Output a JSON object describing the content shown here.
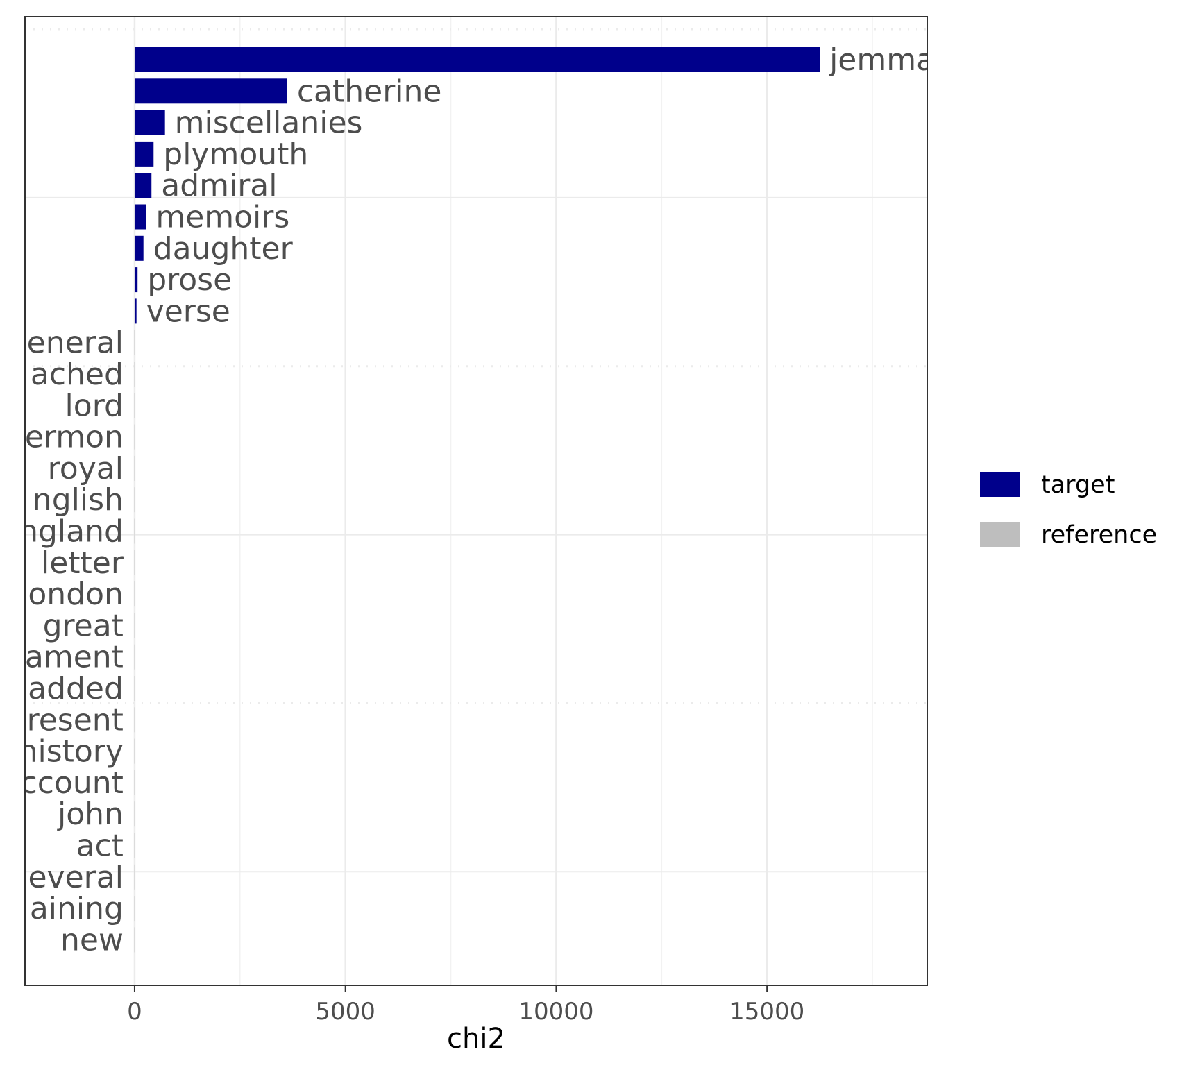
{
  "chart_data": {
    "type": "bar",
    "orientation": "horizontal",
    "xlabel": "chi2",
    "ylabel": "",
    "xlim": [
      -2600,
      18800
    ],
    "x_ticks": [
      0,
      5000,
      10000,
      15000
    ],
    "x_tick_labels": [
      "0",
      "5000",
      "10000",
      "15000"
    ],
    "grid": true,
    "legend": {
      "position": "right",
      "entries": [
        {
          "label": "target",
          "color": "#00008B"
        },
        {
          "label": "reference",
          "color": "#BEBEBE"
        }
      ]
    },
    "bars": [
      {
        "term": "jemma",
        "value": 16250,
        "group": "target",
        "label_text": "jemma"
      },
      {
        "term": "catherine",
        "value": 3620,
        "group": "target",
        "label_text": "catherine"
      },
      {
        "term": "miscellanies",
        "value": 720,
        "group": "target",
        "label_text": "miscellanies"
      },
      {
        "term": "plymouth",
        "value": 450,
        "group": "target",
        "label_text": "plymouth"
      },
      {
        "term": "admiral",
        "value": 400,
        "group": "target",
        "label_text": "admiral"
      },
      {
        "term": "memoirs",
        "value": 270,
        "group": "target",
        "label_text": "memoirs"
      },
      {
        "term": "daughter",
        "value": 210,
        "group": "target",
        "label_text": "daughter"
      },
      {
        "term": "prose",
        "value": 70,
        "group": "target",
        "label_text": "prose"
      },
      {
        "term": "verse",
        "value": 45,
        "group": "target",
        "label_text": "verse"
      },
      {
        "term": "general",
        "value": -5,
        "group": "reference",
        "label_text": "eneral"
      },
      {
        "term": "attached",
        "value": -5,
        "group": "reference",
        "label_text": "ached"
      },
      {
        "term": "lord",
        "value": -5,
        "group": "reference",
        "label_text": "lord"
      },
      {
        "term": "sermon",
        "value": -5,
        "group": "reference",
        "label_text": "ermon"
      },
      {
        "term": "royal",
        "value": -5,
        "group": "reference",
        "label_text": "royal"
      },
      {
        "term": "english",
        "value": -5,
        "group": "reference",
        "label_text": "nglish"
      },
      {
        "term": "england",
        "value": -5,
        "group": "reference",
        "label_text": "ngland"
      },
      {
        "term": "letter",
        "value": -5,
        "group": "reference",
        "label_text": "letter"
      },
      {
        "term": "london",
        "value": -5,
        "group": "reference",
        "label_text": "ondon"
      },
      {
        "term": "great",
        "value": -5,
        "group": "reference",
        "label_text": "great"
      },
      {
        "term": "parliament",
        "value": -5,
        "group": "reference",
        "label_text": "ament"
      },
      {
        "term": "added",
        "value": -5,
        "group": "reference",
        "label_text": "added"
      },
      {
        "term": "present",
        "value": -5,
        "group": "reference",
        "label_text": "resent"
      },
      {
        "term": "history",
        "value": -5,
        "group": "reference",
        "label_text": "history"
      },
      {
        "term": "account",
        "value": -5,
        "group": "reference",
        "label_text": "ccount"
      },
      {
        "term": "john",
        "value": -5,
        "group": "reference",
        "label_text": "john"
      },
      {
        "term": "act",
        "value": -5,
        "group": "reference",
        "label_text": "act"
      },
      {
        "term": "several",
        "value": -5,
        "group": "reference",
        "label_text": "everal"
      },
      {
        "term": "containing",
        "value": -5,
        "group": "reference",
        "label_text": "aining"
      },
      {
        "term": "new",
        "value": -5,
        "group": "reference",
        "label_text": "new"
      }
    ]
  }
}
